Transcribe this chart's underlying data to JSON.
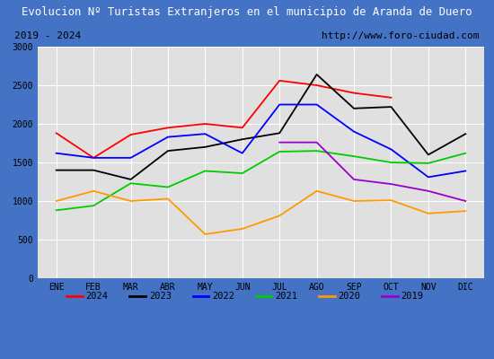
{
  "title": "Evolucion Nº Turistas Extranjeros en el municipio de Aranda de Duero",
  "subtitle_left": "2019 - 2024",
  "subtitle_right": "http://www.foro-ciudad.com",
  "x_labels": [
    "ENE",
    "FEB",
    "MAR",
    "ABR",
    "MAY",
    "JUN",
    "JUL",
    "AGO",
    "SEP",
    "OCT",
    "NOV",
    "DIC"
  ],
  "ylim": [
    0,
    3000
  ],
  "yticks": [
    0,
    500,
    1000,
    1500,
    2000,
    2500,
    3000
  ],
  "series": {
    "2024": {
      "color": "#ff0000",
      "values": [
        1880,
        1560,
        1860,
        1950,
        2000,
        1950,
        2560,
        2500,
        2400,
        2340,
        null,
        null
      ]
    },
    "2023": {
      "color": "#000000",
      "values": [
        1400,
        1400,
        1280,
        1650,
        1700,
        1800,
        1880,
        2640,
        2200,
        2220,
        1600,
        1870
      ]
    },
    "2022": {
      "color": "#0000ff",
      "values": [
        1620,
        1560,
        1560,
        1830,
        1870,
        1620,
        2250,
        2250,
        1900,
        1670,
        1310,
        1390
      ]
    },
    "2021": {
      "color": "#00cc00",
      "values": [
        880,
        940,
        1230,
        1180,
        1390,
        1360,
        1640,
        1650,
        1580,
        1500,
        1490,
        1620
      ]
    },
    "2020": {
      "color": "#ff9900",
      "values": [
        1000,
        1130,
        1000,
        1030,
        570,
        640,
        810,
        1130,
        1000,
        1010,
        840,
        870
      ]
    },
    "2019": {
      "color": "#9900cc",
      "values": [
        null,
        null,
        null,
        null,
        null,
        null,
        1760,
        1760,
        1280,
        1220,
        1130,
        1000
      ]
    }
  },
  "background_color": "#e0e0e0",
  "title_bg_color": "#4472c4",
  "title_color": "#ffffff",
  "header_bg_color": "#ffffff",
  "grid_color": "#ffffff",
  "fig_bg_color": "#4472c4",
  "legend_border_color": "#888888"
}
